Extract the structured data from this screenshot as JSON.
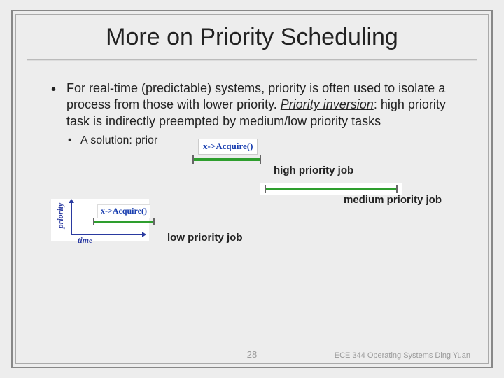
{
  "title": "More on Priority Scheduling",
  "bullet": {
    "pre": "For real-time (predictable) systems, priority is often used to isolate a process from those with lower priority. ",
    "term": "Priority inversion",
    "post": ": high priority task is indirectly preempted by medium/low priority tasks"
  },
  "sub_bullet": "A solution: prior",
  "diagram": {
    "acquire_text": "x->Acquire()",
    "high_label": "high priority job",
    "medium_label": "medium priority job",
    "low_label": "low priority job",
    "y_axis": "priority",
    "x_axis": "time",
    "line_color": "#2e9e2e",
    "axis_color": "#2a3aa0"
  },
  "footer": {
    "page": "28",
    "right": "ECE 344 Operating Systems Ding Yuan"
  }
}
